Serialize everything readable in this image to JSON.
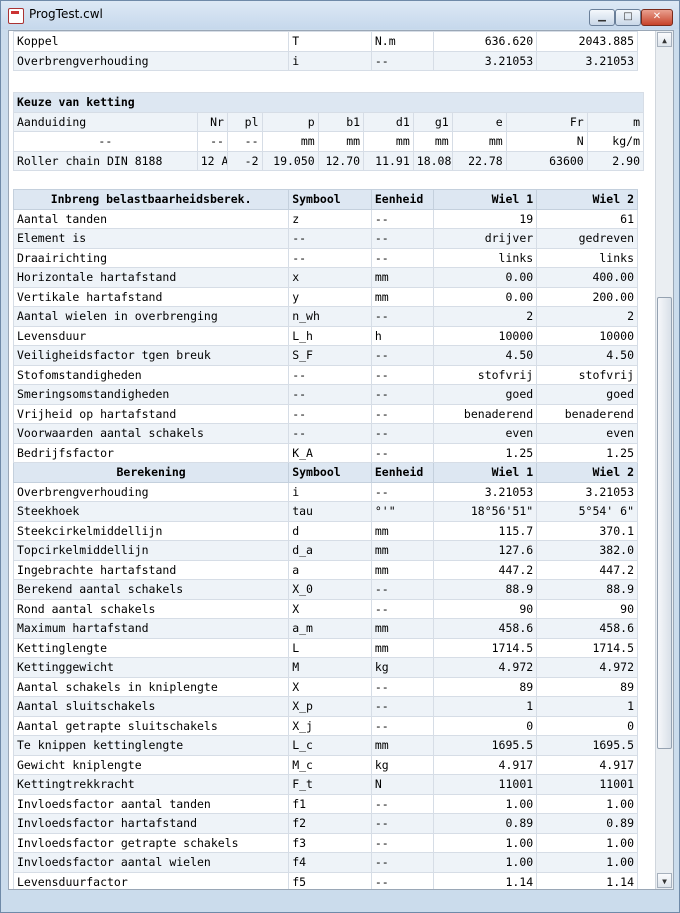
{
  "window": {
    "title": "ProgTest.cwl"
  },
  "table1": {
    "rows": [
      [
        "Koppel",
        "T",
        "N.m",
        "636.620",
        "2043.885"
      ],
      [
        "Overbrengverhouding",
        "i",
        "--",
        "3.21053",
        "3.21053"
      ]
    ]
  },
  "chain": {
    "title": "Keuze van ketting",
    "headers": [
      "Aanduiding",
      "Nr",
      "pl",
      "p",
      "b1",
      "d1",
      "g1",
      "e",
      "Fr",
      "m"
    ],
    "units": [
      "--",
      "--",
      "--",
      "mm",
      "mm",
      "mm",
      "mm",
      "mm",
      "N",
      "kg/m"
    ],
    "row": [
      "Roller chain DIN 8188",
      "12 A",
      "-2",
      "19.050",
      "12.70",
      "11.91",
      "18.08",
      "22.78",
      "63600",
      "2.90"
    ]
  },
  "inbreng": {
    "headers": [
      "Inbreng belastbaarheidsberek.",
      "Symbool",
      "Eenheid",
      "Wiel 1",
      "Wiel 2"
    ],
    "rows": [
      [
        "Aantal tanden",
        "z",
        "--",
        "19",
        "61"
      ],
      [
        "Element is",
        "--",
        "--",
        "drijver",
        "gedreven"
      ],
      [
        "Draairichting",
        "--",
        "--",
        "links",
        "links"
      ],
      [
        "Horizontale hartafstand",
        "x",
        "mm",
        "0.00",
        "400.00"
      ],
      [
        "Vertikale hartafstand",
        "y",
        "mm",
        "0.00",
        "200.00"
      ],
      [
        "Aantal wielen in overbrenging",
        "n_wh",
        "--",
        "2",
        "2"
      ],
      [
        "Levensduur",
        "L_h",
        "h",
        "10000",
        "10000"
      ],
      [
        "Veiligheidsfactor tgen breuk",
        "S_F",
        "--",
        "4.50",
        "4.50"
      ],
      [
        "Stofomstandigheden",
        "--",
        "--",
        "stofvrij",
        "stofvrij"
      ],
      [
        "Smeringsomstandigheden",
        "--",
        "--",
        "goed",
        "goed"
      ],
      [
        "Vrijheid op hartafstand",
        "--",
        "--",
        "benaderend",
        "benaderend"
      ],
      [
        "Voorwaarden aantal schakels",
        "--",
        "--",
        "even",
        "even"
      ],
      [
        "Bedrijfsfactor",
        "K_A",
        "--",
        "1.25",
        "1.25"
      ]
    ]
  },
  "berekening": {
    "headers": [
      "Berekening",
      "Symbool",
      "Eenheid",
      "Wiel 1",
      "Wiel 2"
    ],
    "rows": [
      [
        "Overbrengverhouding",
        "i",
        "--",
        "3.21053",
        "3.21053"
      ],
      [
        "Steekhoek",
        "tau",
        "°'\"",
        "18°56'51\"",
        "5°54' 6\""
      ],
      [
        "Steekcirkelmiddellijn",
        "d",
        "mm",
        "115.7",
        "370.1"
      ],
      [
        "Topcirkelmiddellijn",
        "d_a",
        "mm",
        "127.6",
        "382.0"
      ],
      [
        "Ingebrachte hartafstand",
        "a",
        "mm",
        "447.2",
        "447.2"
      ],
      [
        "Berekend aantal schakels",
        "X_0",
        "--",
        "88.9",
        "88.9"
      ],
      [
        "Rond aantal schakels",
        "X",
        "--",
        "90",
        "90"
      ],
      [
        "Maximum hartafstand",
        "a_m",
        "mm",
        "458.6",
        "458.6"
      ],
      [
        "Kettinglengte",
        "L",
        "mm",
        "1714.5",
        "1714.5"
      ],
      [
        "Kettinggewicht",
        "M",
        "kg",
        "4.972",
        "4.972"
      ],
      [
        "Aantal schakels in kniplengte",
        "X",
        "--",
        "89",
        "89"
      ],
      [
        "Aantal sluitschakels",
        "X_p",
        "--",
        "1",
        "1"
      ],
      [
        "Aantal getrapte sluitschakels",
        "X_j",
        "--",
        "0",
        "0"
      ],
      [
        "Te knippen kettinglengte",
        "L_c",
        "mm",
        "1695.5",
        "1695.5"
      ],
      [
        "Gewicht kniplengte",
        "M_c",
        "kg",
        "4.917",
        "4.917"
      ],
      [
        "Kettingtrekkracht",
        "F_t",
        "N",
        "11001",
        "11001"
      ],
      [
        "Invloedsfactor aantal tanden",
        "f1",
        "--",
        "1.00",
        "1.00"
      ],
      [
        "Invloedsfactor hartafstand",
        "f2",
        "--",
        "0.89",
        "0.89"
      ],
      [
        "Invloedsfactor getrapte schakels",
        "f3",
        "--",
        "1.00",
        "1.00"
      ],
      [
        "Invloedsfactor aantal wielen",
        "f4",
        "--",
        "1.00",
        "1.00"
      ],
      [
        "Levensduurfactor",
        "f5",
        "--",
        "1.14",
        "1.14"
      ]
    ]
  },
  "icons": {
    "app": "app-icon",
    "minimize": "minimize-icon",
    "maximize": "maximize-icon",
    "close": "close-icon",
    "scroll_up": "scroll-up-icon",
    "scroll_down": "scroll-down-icon"
  }
}
